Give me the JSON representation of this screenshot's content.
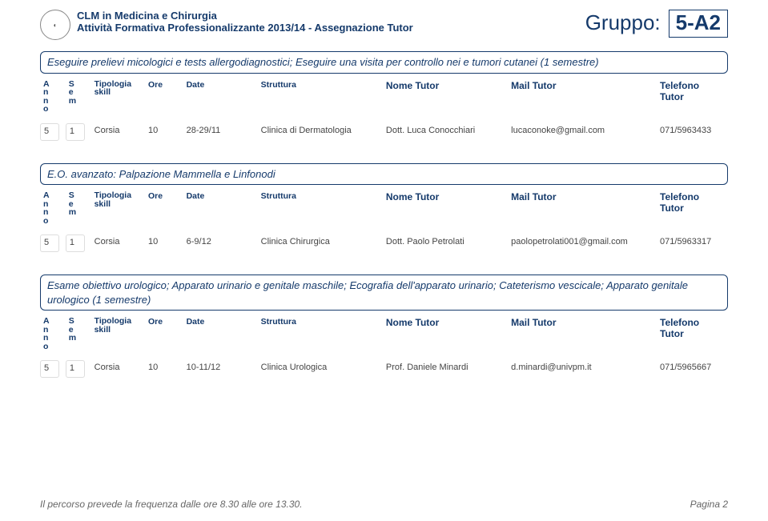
{
  "header": {
    "line1": "CLM in Medicina e Chirurgia",
    "line2": "Attività Formativa Professionalizzante 2013/14 - Assegnazione Tutor",
    "gruppo_label": "Gruppo:",
    "gruppo_code": "5-A2"
  },
  "columns": {
    "anno": "A\nn\nn\no",
    "sem": "S\ne\nm",
    "tipo": "Tipologia\nskill",
    "ore": "Ore",
    "date": "Date",
    "strut": "Struttura",
    "nome": "Nome Tutor",
    "mail": "Mail Tutor",
    "tel": "Telefono Tutor"
  },
  "sections": [
    {
      "title": "Eseguire prelievi micologici e tests allergodiagnostici; Eseguire una visita per controllo nei e tumori cutanei (1 semestre)",
      "rows": [
        {
          "anno": "5",
          "sem": "1",
          "tipo": "Corsia",
          "ore": "10",
          "date": "28-29/11",
          "strut": "Clinica di Dermatologia",
          "nome": "Dott. Luca Conocchiari",
          "mail": "lucaconoke@gmail.com",
          "tel": "071/5963433"
        }
      ]
    },
    {
      "title": "E.O. avanzato: Palpazione Mammella e Linfonodi",
      "rows": [
        {
          "anno": "5",
          "sem": "1",
          "tipo": "Corsia",
          "ore": "10",
          "date": "6-9/12",
          "strut": "Clinica Chirurgica",
          "nome": "Dott. Paolo Petrolati",
          "mail": "paolopetrolati001@gmail.com",
          "tel": "071/5963317"
        }
      ]
    },
    {
      "title": "Esame obiettivo urologico; Apparato urinario e genitale maschile; Ecografia dell'apparato urinario; Cateterismo vescicale; Apparato genitale urologico (1 semestre)",
      "rows": [
        {
          "anno": "5",
          "sem": "1",
          "tipo": "Corsia",
          "ore": "10",
          "date": "10-11/12",
          "strut": "Clinica Urologica",
          "nome": "Prof. Daniele Minardi",
          "mail": "d.minardi@univpm.it",
          "tel": "071/5965667"
        }
      ]
    }
  ],
  "footer": {
    "left": "Il percorso prevede la frequenza dalle ore 8.30 alle ore 13.30.",
    "right": "Pagina 2"
  }
}
